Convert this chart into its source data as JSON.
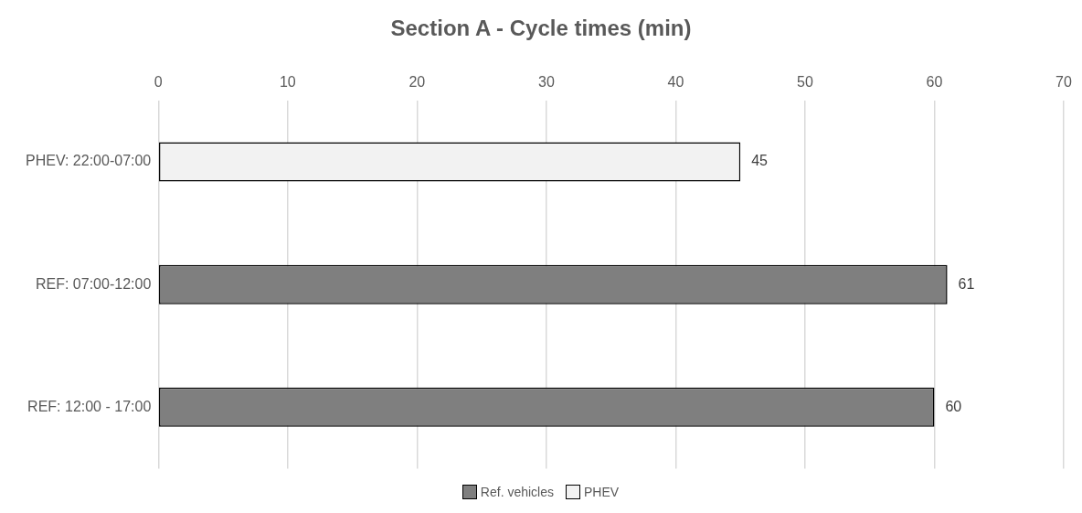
{
  "chart_data": {
    "type": "bar",
    "title": "Section A - Cycle times (min)",
    "orientation": "horizontal",
    "stacked": true,
    "categories": [
      "PHEV: 22:00-07:00",
      "REF: 07:00-12:00",
      "REF: 12:00 - 17:00"
    ],
    "series": [
      {
        "name": "Ref. vehicles",
        "color": "#7f7f7f",
        "values": [
          null,
          61,
          60
        ]
      },
      {
        "name": "PHEV",
        "color": "#f2f2f2",
        "values": [
          45,
          null,
          null
        ]
      }
    ],
    "xlim": [
      0,
      70
    ],
    "xticks": [
      0,
      10,
      20,
      30,
      40,
      50,
      60,
      70
    ],
    "grid": "x",
    "legend": "bottom",
    "data_labels": true
  }
}
